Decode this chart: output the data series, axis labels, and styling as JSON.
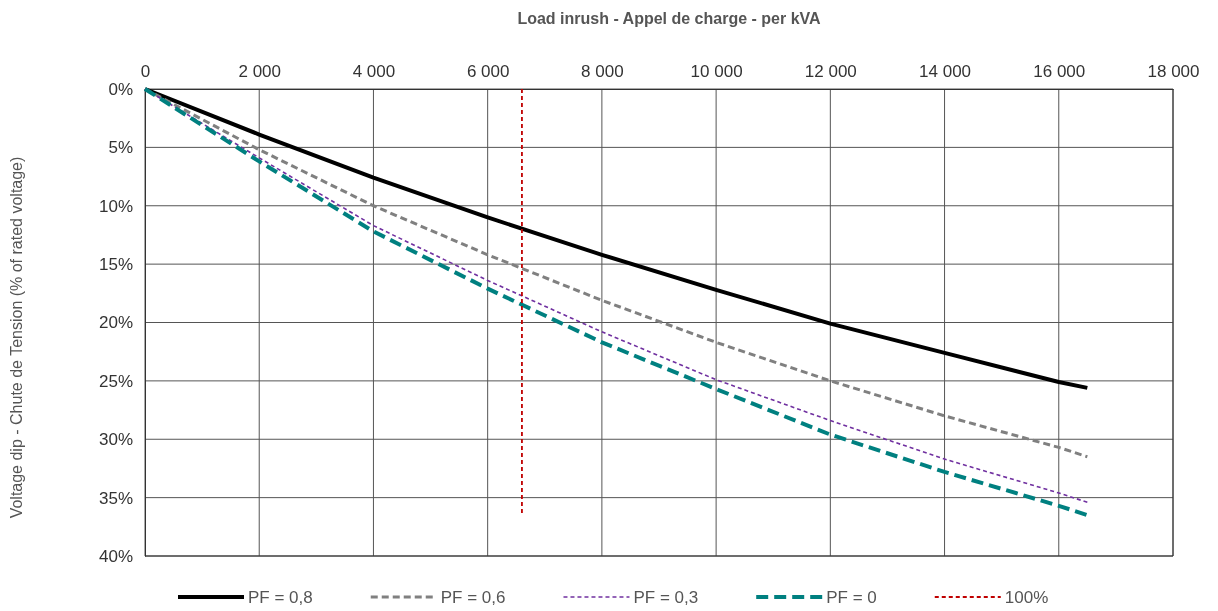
{
  "chart_data": {
    "type": "line",
    "xlabel": "Load inrush - Appel de charge  - per kVA",
    "ylabel": "Voltage dip - Chute de Tension  (% of rated voltage)",
    "x": [
      0,
      2000,
      4000,
      6000,
      8000,
      10000,
      12000,
      14000,
      16000,
      16500
    ],
    "xlim": [
      0,
      18000
    ],
    "xticks": [
      0,
      {
        "value": 2000,
        "label": "2 000"
      },
      {
        "value": 4000,
        "label": "4 000"
      },
      {
        "value": 6000,
        "label": "6 000"
      },
      {
        "value": 8000,
        "label": "8 000"
      },
      {
        "value": 10000,
        "label": "10 000"
      },
      {
        "value": 12000,
        "label": "12 000"
      },
      {
        "value": 14000,
        "label": "14 000"
      },
      {
        "value": 16000,
        "label": "16 000"
      },
      {
        "value": 18000,
        "label": "18 000"
      }
    ],
    "ylim": [
      40,
      0
    ],
    "yticks": [
      {
        "value": 0,
        "label": "0%"
      },
      {
        "value": 5,
        "label": "5%"
      },
      {
        "value": 10,
        "label": "10%"
      },
      {
        "value": 15,
        "label": "15%"
      },
      {
        "value": 20,
        "label": "20%"
      },
      {
        "value": 25,
        "label": "25%"
      },
      {
        "value": 30,
        "label": "30%"
      },
      {
        "value": 35,
        "label": "35%"
      },
      {
        "value": 40,
        "label": "40%"
      }
    ],
    "grid": true,
    "legend": "bottom",
    "marker": "none",
    "series": [
      {
        "name": "PF = 0,8",
        "color": "#000000",
        "line_style": "solid",
        "values": [
          0,
          3.9,
          7.6,
          11.0,
          14.2,
          17.2,
          20.1,
          22.6,
          25.1,
          25.6
        ]
      },
      {
        "name": "PF = 0,6",
        "color": "#808080",
        "line_style": "dashed",
        "values": [
          0,
          5.2,
          10.0,
          14.2,
          18.1,
          21.7,
          25.0,
          28.0,
          30.7,
          31.5
        ]
      },
      {
        "name": "PF = 0,3",
        "color": "#7030a0",
        "line_style": "dashed",
        "values": [
          0,
          5.9,
          11.7,
          16.4,
          20.8,
          24.9,
          28.4,
          31.7,
          34.6,
          35.4
        ]
      },
      {
        "name": "PF = 0",
        "color": "#008080",
        "line_style": "dashed",
        "values": [
          0,
          6.2,
          12.2,
          17.1,
          21.7,
          25.7,
          29.6,
          32.8,
          35.7,
          36.5
        ]
      },
      {
        "name": "100%",
        "color": "#c00000",
        "line_style": "dashed",
        "x": [
          6600,
          6600
        ],
        "values": [
          0,
          36.4
        ]
      }
    ]
  }
}
